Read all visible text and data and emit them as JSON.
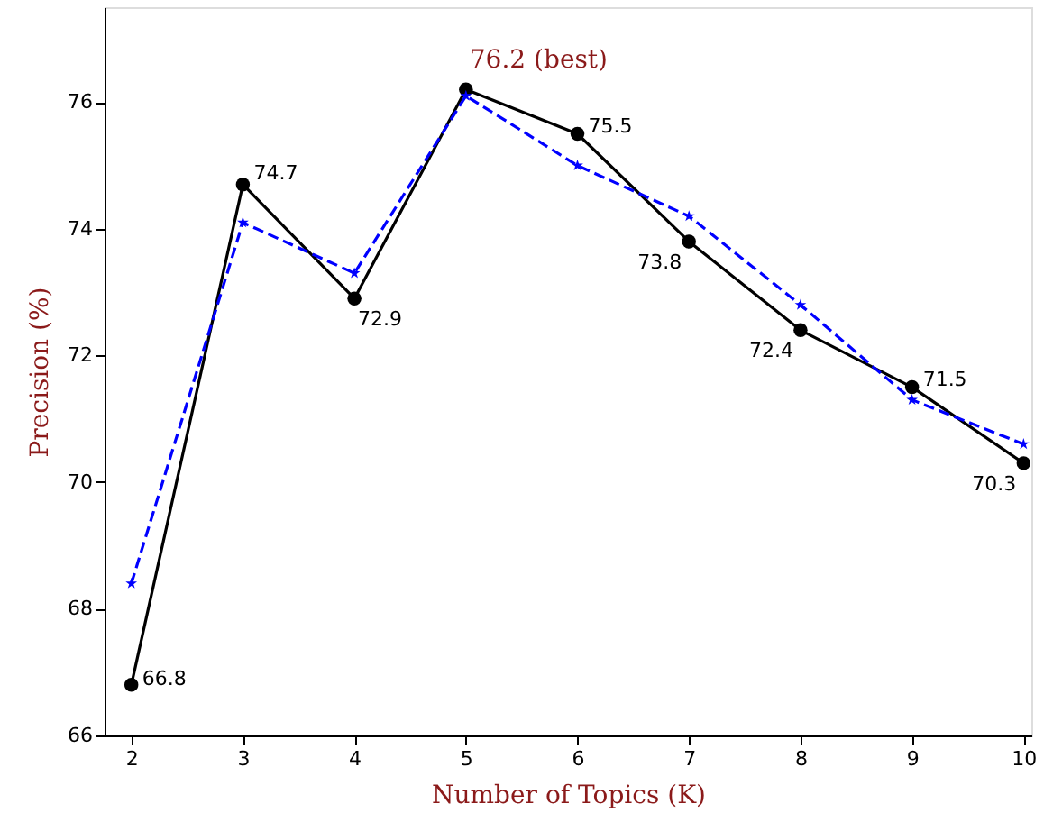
{
  "chart_data": {
    "type": "line",
    "xlabel": "Number of Topics (K)",
    "ylabel": "Precision (%)",
    "x": [
      2,
      3,
      4,
      5,
      6,
      7,
      8,
      9,
      10
    ],
    "series": [
      {
        "color": "#000000",
        "marker": "circle",
        "line_style": "solid",
        "values": [
          66.8,
          74.7,
          72.9,
          76.2,
          75.5,
          73.8,
          72.4,
          71.5,
          70.3
        ],
        "value_labels": [
          "66.8",
          "74.7",
          "72.9",
          null,
          "75.5",
          "73.8",
          "72.4",
          "71.5",
          "70.3"
        ]
      },
      {
        "color": "#0000ff",
        "marker": "star",
        "line_style": "dashed",
        "values": [
          68.4,
          74.1,
          73.3,
          76.1,
          75.0,
          74.2,
          72.8,
          71.3,
          70.6
        ]
      }
    ],
    "annotations": [
      {
        "text": "76.2 (best)",
        "x": 5,
        "y": 76.2
      }
    ],
    "xlim": [
      1.76,
      10.07
    ],
    "ylim": [
      66,
      77.5
    ],
    "xticks": [
      2,
      3,
      4,
      5,
      6,
      7,
      8,
      9,
      10
    ],
    "yticks": [
      66,
      68,
      70,
      72,
      74,
      76
    ],
    "grid": false
  }
}
